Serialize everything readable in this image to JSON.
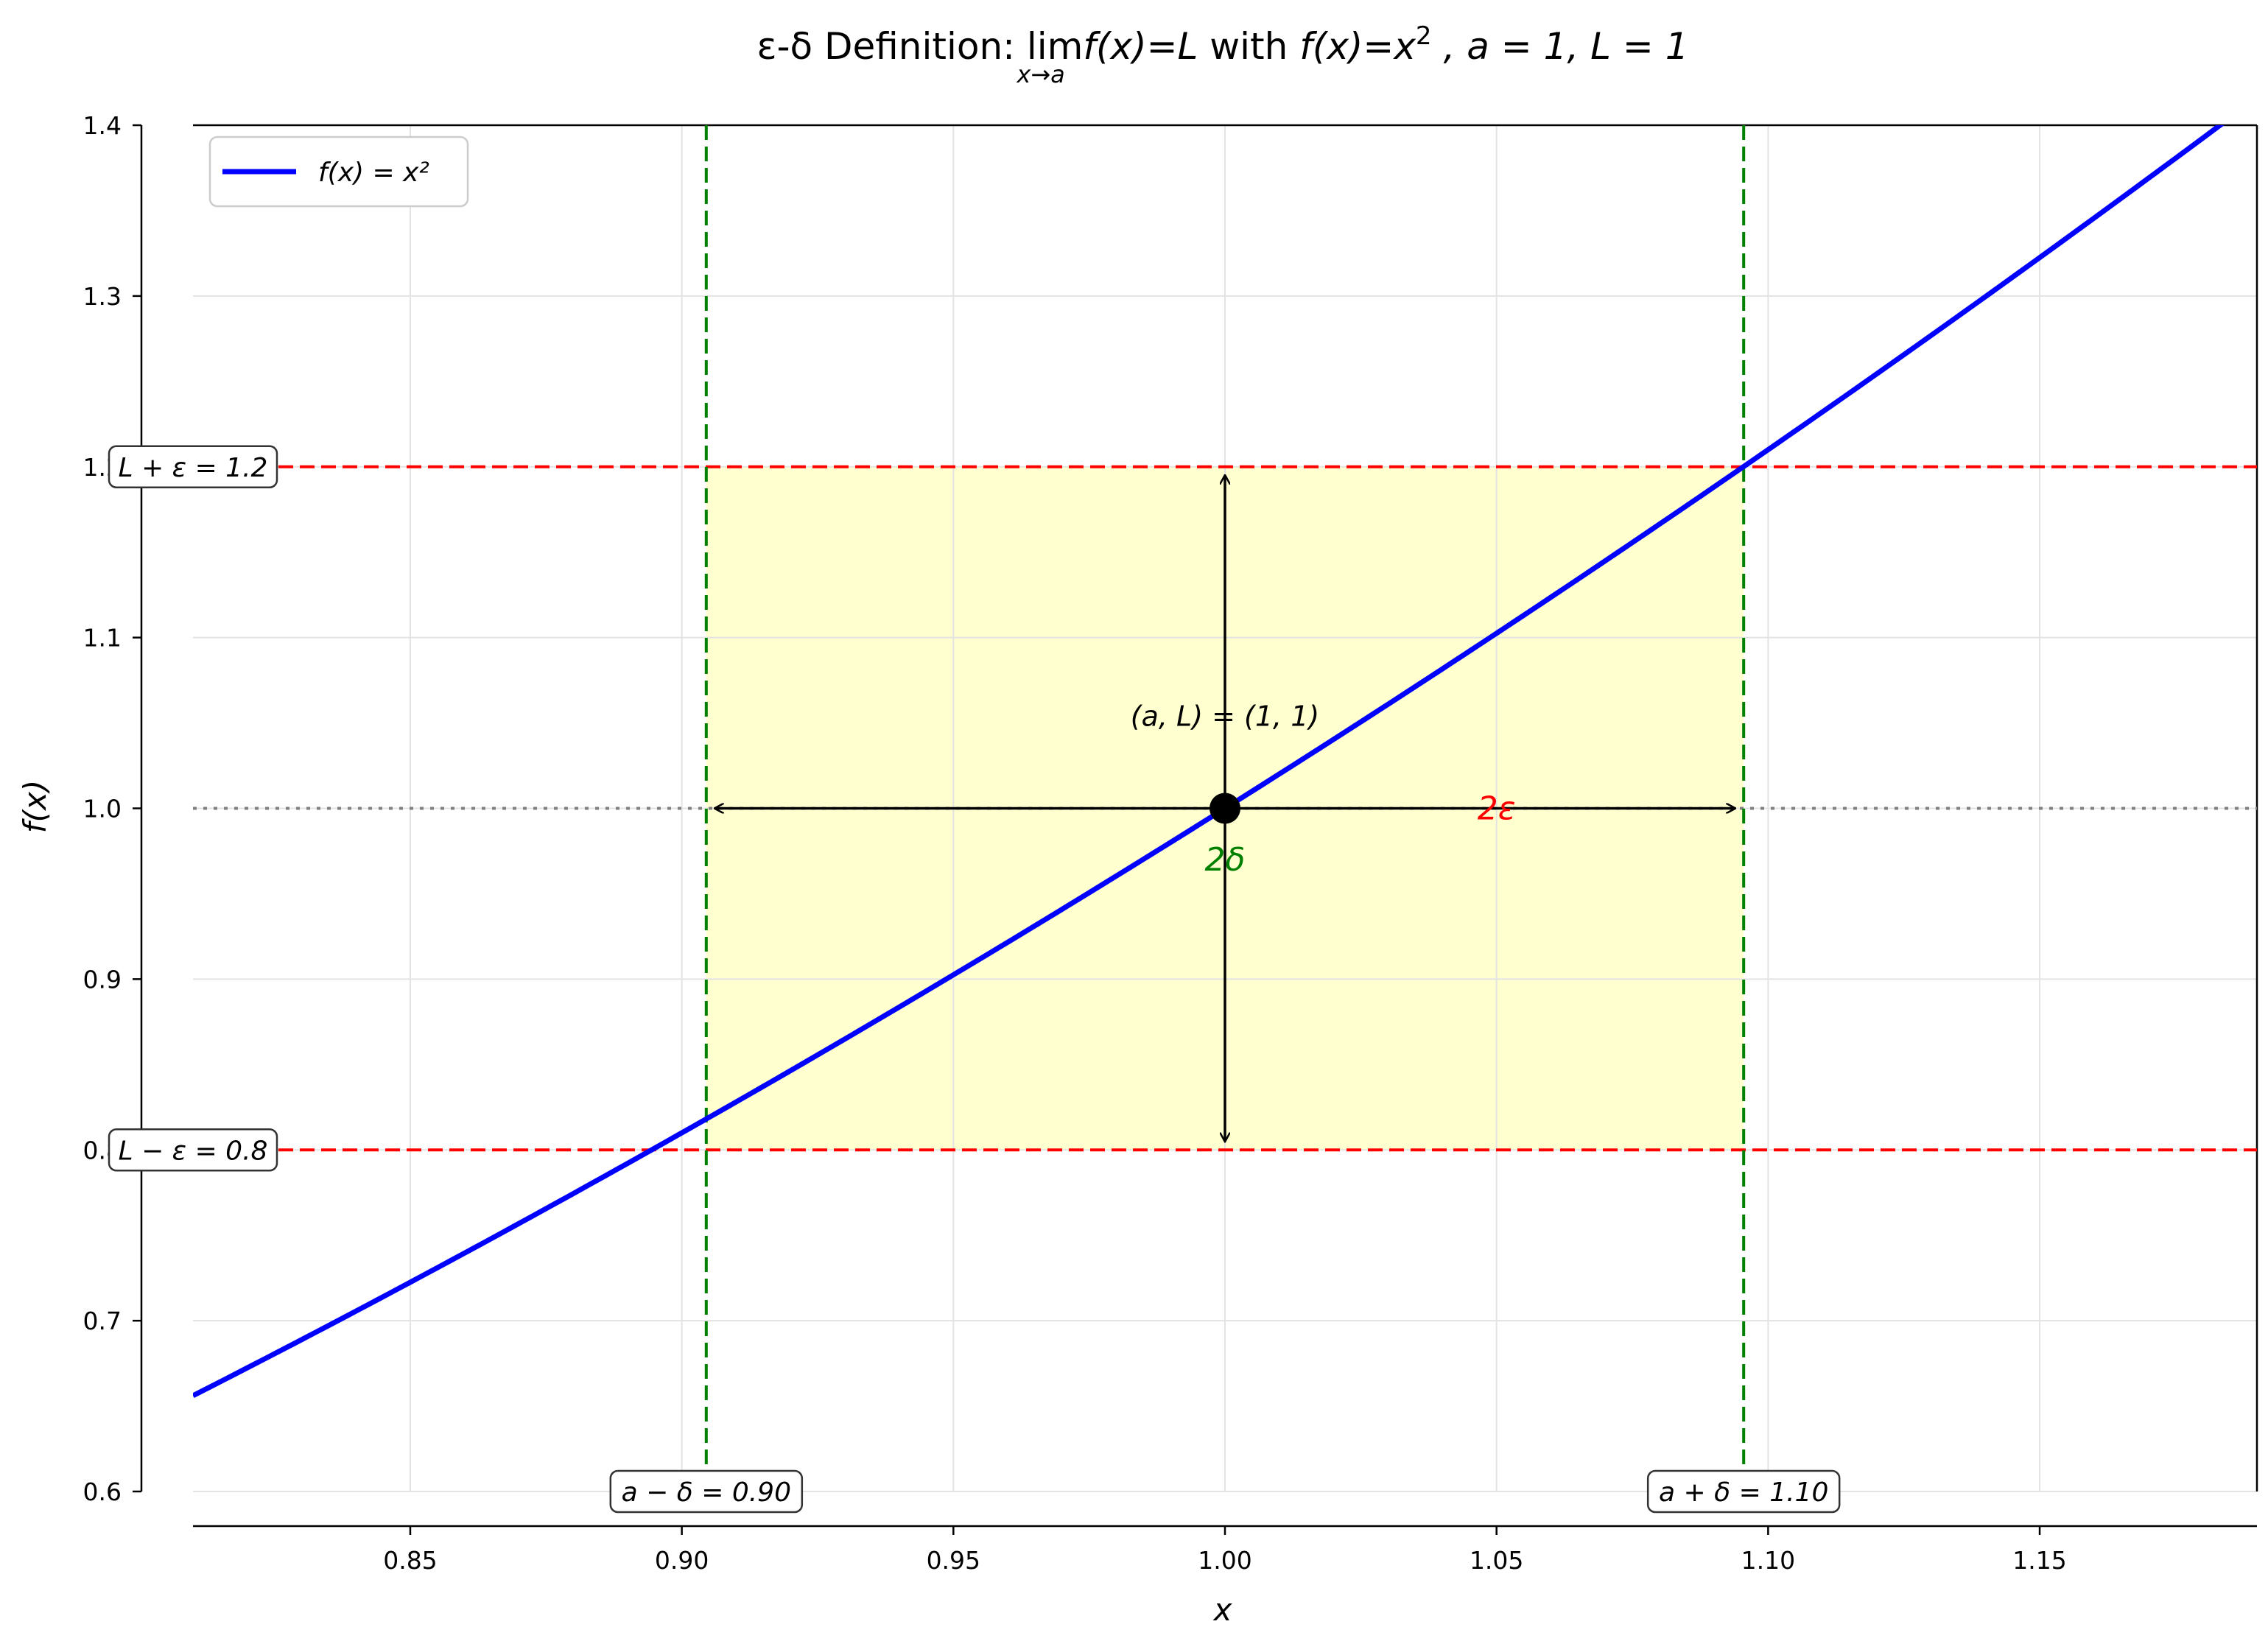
{
  "chart_data": {
    "type": "line",
    "title": {
      "prefix": "ε-δ Definition: ",
      "lim": "lim",
      "lim_sub": "x→a",
      "limit_expr": "f(x)=L",
      "with_word": " with ",
      "func": "f(x)=x",
      "func_sup": "2",
      "params": " , a = 1, L = 1"
    },
    "xlabel": "x",
    "ylabel": "f(x)",
    "xlim": [
      0.81,
      1.19
    ],
    "ylim": [
      0.6,
      1.4
    ],
    "xticks": [
      0.85,
      0.9,
      0.95,
      1.0,
      1.05,
      1.1,
      1.15
    ],
    "xtick_labels": [
      "0.85",
      "0.90",
      "0.95",
      "1.00",
      "1.05",
      "1.10",
      "1.15"
    ],
    "yticks": [
      0.6,
      0.7,
      0.8,
      0.9,
      1.0,
      1.1,
      1.2,
      1.3,
      1.4
    ],
    "ytick_labels": [
      "0.6",
      "0.7",
      "0.8",
      "0.9",
      "1.0",
      "1.1",
      "1.2",
      "1.3",
      "1.4"
    ],
    "grid": true,
    "legend": {
      "placement": "top-left",
      "entries": [
        {
          "label": "f(x) = x²",
          "color": "#0000ff"
        }
      ]
    },
    "series": [
      {
        "name": "f(x) = x²",
        "function": "x^2",
        "color": "#0000ff",
        "x_range": [
          0.81,
          1.19
        ]
      }
    ],
    "a": 1.0,
    "L": 1.0,
    "epsilon": 0.2,
    "delta_left": 0.9045,
    "delta_right": 1.0955,
    "hlines": [
      {
        "y": 1.2,
        "color": "#ff0000",
        "style": "dashed",
        "label": "L + ε = 1.2"
      },
      {
        "y": 0.8,
        "color": "#ff0000",
        "style": "dashed",
        "label": "L − ε = 0.8"
      },
      {
        "y": 1.0,
        "color": "#808080",
        "style": "dotted"
      }
    ],
    "vlines": [
      {
        "x": 0.9045,
        "color": "#008000",
        "style": "dashed",
        "label": "a − δ = 0.90"
      },
      {
        "x": 1.0955,
        "color": "#008000",
        "style": "dashed",
        "label": "a + δ = 1.10"
      }
    ],
    "shaded_region": {
      "x": [
        0.9045,
        1.0955
      ],
      "y": [
        0.8,
        1.2
      ],
      "color": "#ffffcc"
    },
    "point": {
      "x": 1.0,
      "y": 1.0,
      "label": "(a, L) = (1, 1)"
    },
    "annotations": {
      "two_epsilon": {
        "text": "2ε",
        "color": "#ff0000",
        "x": 1.05,
        "y": 1.0
      },
      "two_delta": {
        "text": "2δ",
        "color": "#008000",
        "x": 1.0,
        "y": 0.97
      }
    },
    "arrows": [
      {
        "from": [
          0.9045,
          1.0
        ],
        "to": [
          1.0955,
          1.0
        ]
      },
      {
        "from": [
          1.0,
          0.8
        ],
        "to": [
          1.0,
          1.2
        ]
      }
    ]
  }
}
